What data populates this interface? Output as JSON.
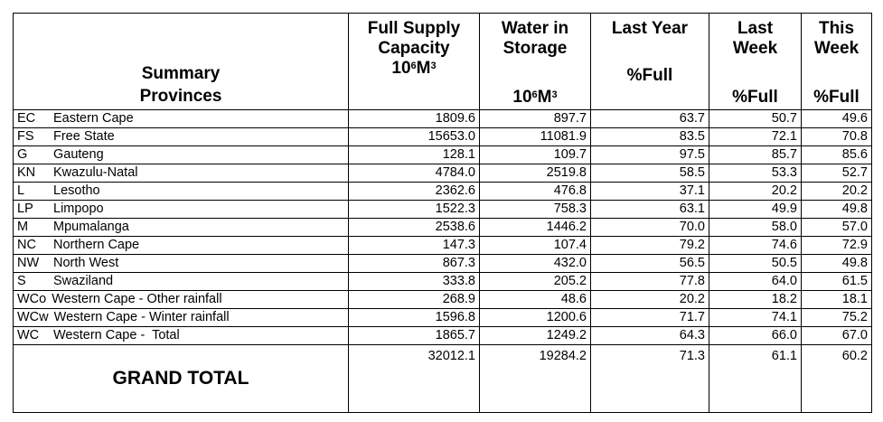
{
  "headers": {
    "summary_line1": "Summary",
    "summary_line2": "Provinces",
    "fsc_line1": "Full Supply",
    "fsc_line2": "Capacity",
    "fsc_unit": "10",
    "fsc_unit_exp": "6",
    "fsc_unit_suffix": "M",
    "fsc_unit_exp2": "3",
    "wis_line1": "Water in",
    "wis_line2": "Storage",
    "wis_unit": "10",
    "wis_unit_exp": "6",
    "wis_unit_suffix": "M",
    "wis_unit_exp2": "3",
    "ly_line1": "Last Year",
    "ly_line2": "%Full",
    "lw_line1": "Last",
    "lw_line2": "Week",
    "lw_line3": "%Full",
    "tw_line1": "This",
    "tw_line2": "Week",
    "tw_line3": "%Full"
  },
  "rows": [
    {
      "code": "EC",
      "name": "Eastern Cape",
      "fsc": "1809.6",
      "wis": "897.7",
      "ly": "63.7",
      "lw": "50.7",
      "tw": "49.6"
    },
    {
      "code": "FS",
      "name": "Free State",
      "fsc": "15653.0",
      "wis": "11081.9",
      "ly": "83.5",
      "lw": "72.1",
      "tw": "70.8"
    },
    {
      "code": "G",
      "name": "Gauteng",
      "fsc": "128.1",
      "wis": "109.7",
      "ly": "97.5",
      "lw": "85.7",
      "tw": "85.6"
    },
    {
      "code": "KN",
      "name": "Kwazulu-Natal",
      "fsc": "4784.0",
      "wis": "2519.8",
      "ly": "58.5",
      "lw": "53.3",
      "tw": "52.7"
    },
    {
      "code": "L",
      "name": "Lesotho",
      "fsc": "2362.6",
      "wis": "476.8",
      "ly": "37.1",
      "lw": "20.2",
      "tw": "20.2"
    },
    {
      "code": "LP",
      "name": "Limpopo",
      "fsc": "1522.3",
      "wis": "758.3",
      "ly": "63.1",
      "lw": "49.9",
      "tw": "49.8"
    },
    {
      "code": "M",
      "name": "Mpumalanga",
      "fsc": "2538.6",
      "wis": "1446.2",
      "ly": "70.0",
      "lw": "58.0",
      "tw": "57.0"
    },
    {
      "code": "NC",
      "name": "Northern Cape",
      "fsc": "147.3",
      "wis": "107.4",
      "ly": "79.2",
      "lw": "74.6",
      "tw": "72.9"
    },
    {
      "code": "NW",
      "name": "North West",
      "fsc": "867.3",
      "wis": "432.0",
      "ly": "56.5",
      "lw": "50.5",
      "tw": "49.8"
    },
    {
      "code": "S",
      "name": "Swaziland",
      "fsc": "333.8",
      "wis": "205.2",
      "ly": "77.8",
      "lw": "64.0",
      "tw": "61.5"
    },
    {
      "code": "WCo",
      "name": "Western Cape - Other rainfall",
      "fsc": "268.9",
      "wis": "48.6",
      "ly": "20.2",
      "lw": "18.2",
      "tw": "18.1"
    },
    {
      "code": "WCw",
      "name": "Western Cape - Winter rainfall",
      "fsc": "1596.8",
      "wis": "1200.6",
      "ly": "71.7",
      "lw": "74.1",
      "tw": "75.2"
    },
    {
      "code": "WC",
      "name": "Western Cape -  Total",
      "fsc": "1865.7",
      "wis": "1249.2",
      "ly": "64.3",
      "lw": "66.0",
      "tw": "67.0"
    }
  ],
  "total": {
    "label": "GRAND TOTAL",
    "fsc": "32012.1",
    "wis": "19284.2",
    "ly": "71.3",
    "lw": "61.1",
    "tw": "60.2"
  }
}
